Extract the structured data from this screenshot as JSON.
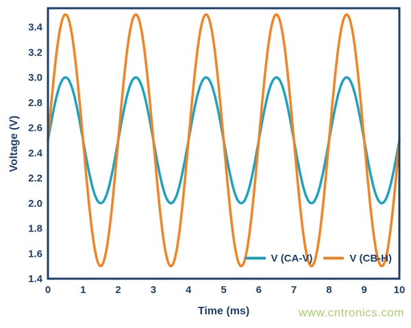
{
  "style": {
    "axis_color": "#1a3e6e",
    "background": "#ffffff"
  },
  "watermark": {
    "text": "www.cntronics.com",
    "color": "#a9cf6e"
  },
  "chart_data": {
    "type": "line",
    "title": "",
    "xlabel": "Time (ms)",
    "ylabel": "Voltage (V)",
    "xlim": [
      0,
      10
    ],
    "ylim": [
      1.4,
      3.55
    ],
    "xticks": [
      0,
      1,
      2,
      3,
      4,
      5,
      6,
      7,
      8,
      9,
      10
    ],
    "yticks": [
      1.4,
      1.6,
      1.8,
      2.0,
      2.2,
      2.4,
      2.6,
      2.8,
      3.0,
      3.2,
      3.4
    ],
    "grid": false,
    "legend_position": "inside-bottom-right",
    "series": [
      {
        "name": "V (CA-V)",
        "color": "#18a2c4",
        "waveform": "sine",
        "mean": 2.5,
        "amplitude": 0.5,
        "period_ms": 2,
        "phase_deg": 0,
        "min": 2.0,
        "max": 3.0
      },
      {
        "name": "V (CB-H)",
        "color": "#f5821f",
        "waveform": "sine",
        "mean": 2.5,
        "amplitude": 1.0,
        "period_ms": 2,
        "phase_deg": 0,
        "min": 1.5,
        "max": 3.5
      }
    ]
  }
}
